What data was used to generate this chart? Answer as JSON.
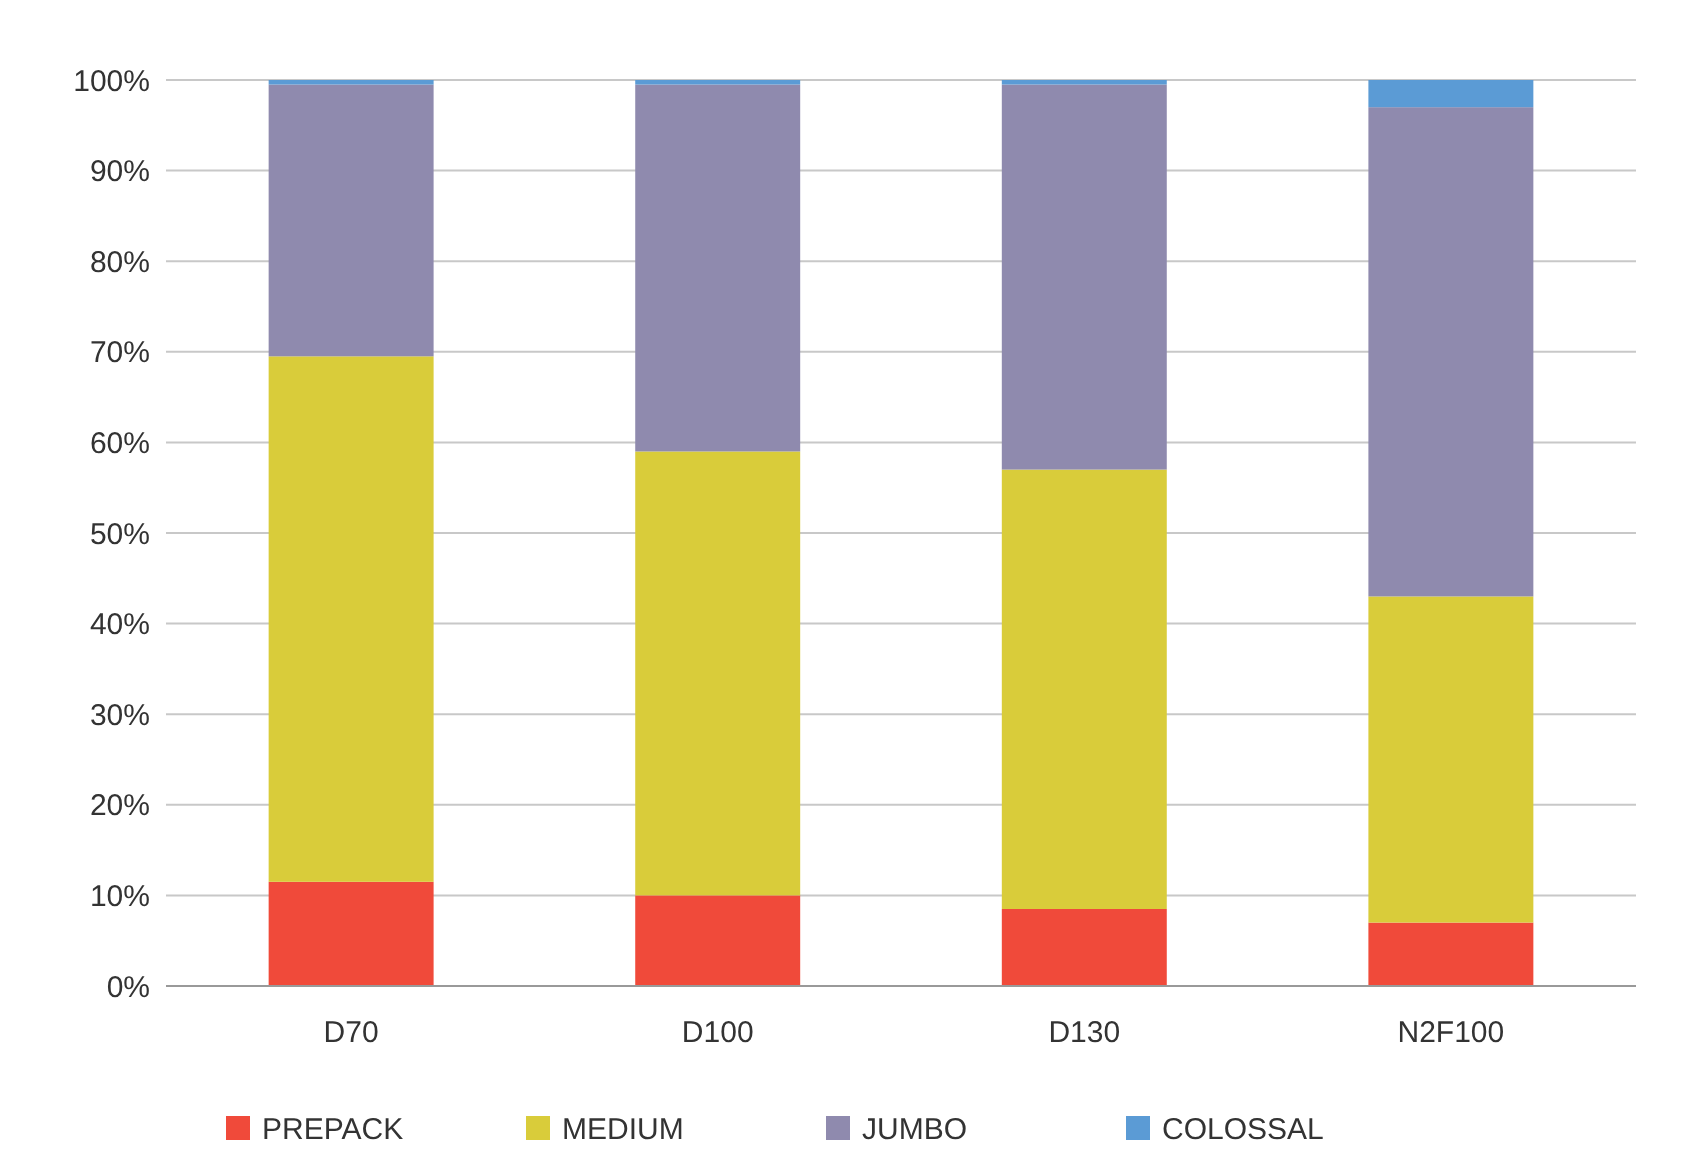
{
  "chart_data": {
    "type": "bar",
    "stacked": true,
    "categories": [
      "D70",
      "D100",
      "D130",
      "N2F100"
    ],
    "series": [
      {
        "name": "PREPACK",
        "color": "#f04a3a",
        "values": [
          11.5,
          10,
          8.5,
          7
        ]
      },
      {
        "name": "MEDIUM",
        "color": "#d9cc3a",
        "values": [
          58,
          49,
          48.5,
          36
        ]
      },
      {
        "name": "JUMBO",
        "color": "#8f8aae",
        "values": [
          30,
          40.5,
          42.5,
          54
        ]
      },
      {
        "name": "COLOSSAL",
        "color": "#5b9bd5",
        "values": [
          0.5,
          0.5,
          0.5,
          3
        ]
      }
    ],
    "ylim": [
      0,
      100
    ],
    "yticks": [
      {
        "value": 0,
        "label": "0%"
      },
      {
        "value": 10,
        "label": "10%"
      },
      {
        "value": 20,
        "label": "20%"
      },
      {
        "value": 30,
        "label": "30%"
      },
      {
        "value": 40,
        "label": "40%"
      },
      {
        "value": 50,
        "label": "50%"
      },
      {
        "value": 60,
        "label": "60%"
      },
      {
        "value": 70,
        "label": "70%"
      },
      {
        "value": 80,
        "label": "80%"
      },
      {
        "value": 90,
        "label": "90%"
      },
      {
        "value": 100,
        "label": "100%"
      }
    ],
    "grid": "y",
    "legend": "bottom"
  }
}
